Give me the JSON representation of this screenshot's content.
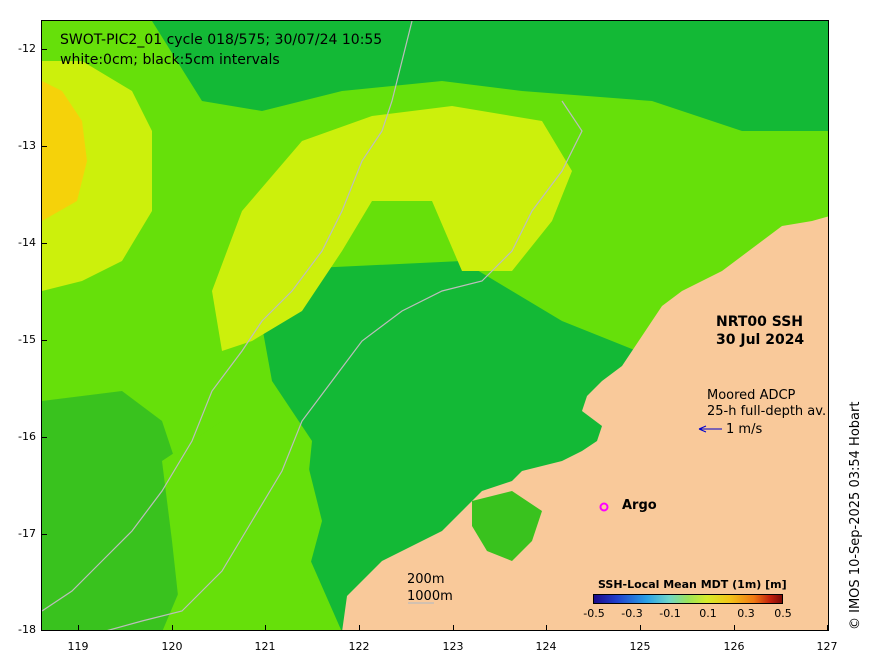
{
  "title": {
    "line1": "SWOT-PIC2_01 cycle 018/575; 30/07/24 10:55",
    "line2": "white:0cm; black:5cm intervals"
  },
  "product": {
    "name": "NRT00 SSH",
    "date": "30 Jul 2024"
  },
  "adcp_legend": {
    "line1": "Moored ADCP",
    "line2": "25-h full-depth av.",
    "scale_label": "1 m/s"
  },
  "argo_legend": {
    "label": "Argo"
  },
  "isobath_legend": {
    "line1": "200m",
    "line2": "1000m"
  },
  "colorbar": {
    "title": "SSH-Local Mean MDT (1m) [m]",
    "ticks": [
      "-0.5",
      "-0.3",
      "-0.1",
      "0.1",
      "0.3",
      "0.5"
    ]
  },
  "axes": {
    "x_ticks": [
      "119",
      "120",
      "121",
      "122",
      "123",
      "124",
      "125",
      "126",
      "127"
    ],
    "y_ticks": [
      "-12",
      "-13",
      "-14",
      "-15",
      "-16",
      "-17",
      "-18"
    ]
  },
  "copyright": "© IMOS 10-Sep-2025 03:54 Hobart",
  "colors": {
    "land": "#f9c99a",
    "ssh_low": "#0db33a",
    "ssh_mid": "#39c21e",
    "ssh_base": "#66e00a",
    "ssh_high": "#ccf00c",
    "ssh_peak": "#f5d20a",
    "isobath": "#bdbdbd",
    "argo": "#ff00ff",
    "adcp_arrow": "#0000cc"
  }
}
